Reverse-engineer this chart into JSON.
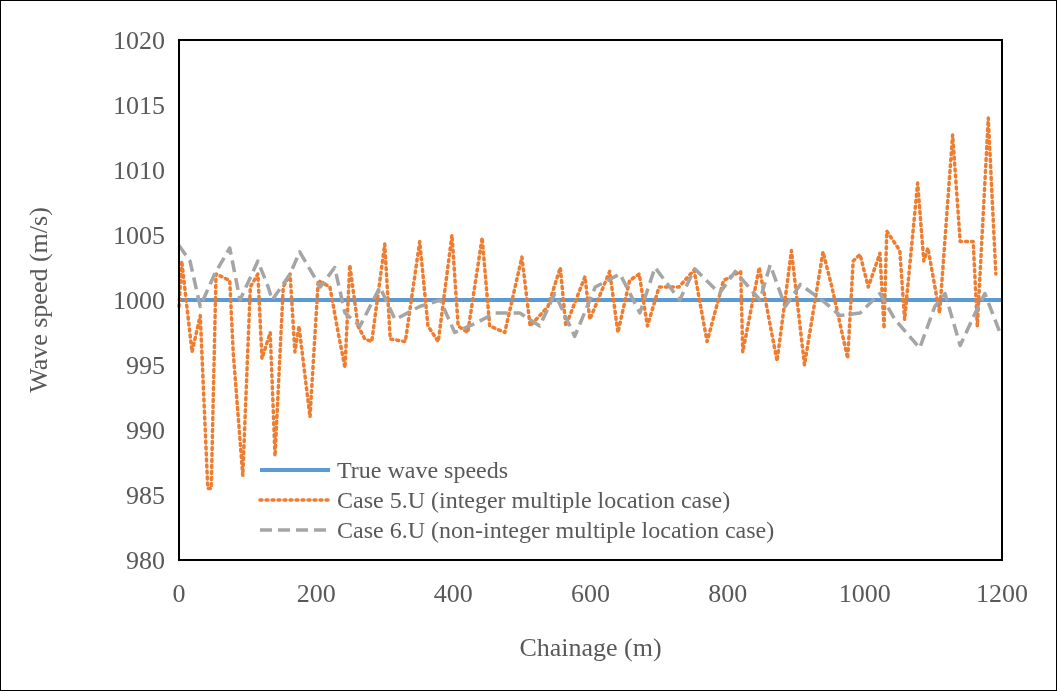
{
  "chart_data": {
    "type": "line",
    "xlabel": "Chainage (m)",
    "ylabel": "Wave speed (m/s)",
    "xlim": [
      0,
      1200
    ],
    "ylim": [
      980,
      1020
    ],
    "xticks": [
      0,
      200,
      400,
      600,
      800,
      1000,
      1200
    ],
    "yticks": [
      980,
      985,
      990,
      995,
      1000,
      1005,
      1010,
      1015,
      1020
    ],
    "grid": false,
    "legend": "bottom left",
    "series": [
      {
        "name": "True wave speeds",
        "color": "#5b9bd5",
        "line_style": "solid",
        "x": [
          0,
          1200
        ],
        "values": [
          1000,
          1000
        ]
      },
      {
        "name": "Case 5.U (integer multiple location case)",
        "color": "#ed7d31",
        "line_style": "dotted",
        "x": [
          0,
          4,
          19,
          31,
          42,
          47,
          54,
          74,
          79,
          93,
          104,
          115,
          121,
          133,
          140,
          152,
          162,
          169,
          175,
          191,
          203,
          220,
          232,
          242,
          249,
          261,
          271,
          281,
          300,
          308,
          330,
          351,
          363,
          378,
          398,
          407,
          421,
          442,
          453,
          475,
          500,
          512,
          538,
          556,
          564,
          592,
          599,
          628,
          640,
          657,
          671,
          683,
          700,
          729,
          751,
          770,
          794,
          819,
          822,
          846,
          872,
          893,
          912,
          939,
          952,
          975,
          983,
          993,
          1005,
          1022,
          1028,
          1032,
          1051,
          1058,
          1077,
          1086,
          1092,
          1109,
          1128,
          1139,
          1158,
          1164,
          1180,
          1191
        ],
        "values": [
          999.5,
          1003,
          996,
          998.8,
          985.5,
          985.5,
          1002,
          1001.5,
          996,
          986.5,
          1001,
          1002,
          995.5,
          997.5,
          988,
          1001,
          1002,
          996,
          998,
          991,
          1001.5,
          1001,
          997.5,
          994.8,
          1002.7,
          998,
          997,
          996.8,
          1004.3,
          997,
          996.8,
          1004.5,
          998,
          996.8,
          1005,
          998,
          997.5,
          1004.8,
          998,
          997.5,
          1003.3,
          998,
          999.5,
          1002.5,
          998,
          1001.8,
          998.5,
          1002.2,
          997.5,
          1001.5,
          1002,
          998,
          1001,
          1001,
          1002.3,
          996.8,
          1001.5,
          1002.2,
          996,
          1002.5,
          995.3,
          1003.8,
          995,
          1003.7,
          1001,
          995.5,
          1003,
          1003.5,
          1001,
          1003.6,
          997.8,
          1005.3,
          1003.8,
          998.5,
          1009,
          1003,
          1004,
          999,
          1012.7,
          1004.5,
          1004.5,
          998,
          1014,
          1002
        ]
      },
      {
        "name": "Case 6.U (non-integer multiple location case)",
        "color": "#a5a5a5",
        "line_style": "dashed",
        "x": [
          0,
          16,
          31,
          52,
          74,
          89,
          115,
          130,
          136,
          162,
          176,
          206,
          227,
          242,
          264,
          293,
          315,
          351,
          381,
          402,
          432,
          461,
          497,
          526,
          548,
          577,
          607,
          643,
          672,
          694,
          730,
          752,
          788,
          811,
          847,
          862,
          884,
          906,
          942,
          964,
          993,
          1022,
          1044,
          1080,
          1102,
          1117,
          1139,
          1161,
          1175,
          1197
        ],
        "values": [
          1004.2,
          1003,
          999.5,
          1002,
          1004,
          1000,
          1003,
          1001,
          1000,
          1002,
          1003.7,
          1001,
          1002.5,
          999,
          998,
          1001,
          998.5,
          999.5,
          1000,
          997.5,
          998.2,
          999,
          999,
          998,
          1000.5,
          997.2,
          1001,
          1002,
          999,
          1002.5,
          1000,
          1002.4,
          1000.5,
          1002.2,
          1000,
          1002.7,
          999.5,
          1001.2,
          999.8,
          998.8,
          999,
          1000.5,
          998.5,
          996.3,
          999.5,
          1000.5,
          996.5,
          999,
          1000.5,
          997.5
        ]
      }
    ]
  }
}
